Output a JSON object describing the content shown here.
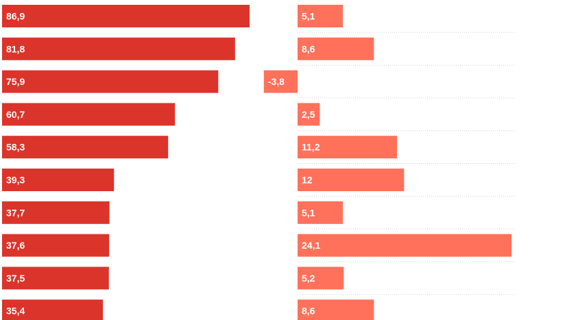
{
  "chart_data": {
    "type": "bar",
    "orientation": "horizontal",
    "layout": "two-panel",
    "grid": false,
    "legend": "none",
    "colors": {
      "left": "#db342b",
      "right": "#ff715b",
      "divider": "#cfcfcf",
      "label": "#ffffff"
    },
    "panels": [
      {
        "id": "left",
        "values": [
          86.9,
          81.8,
          75.9,
          60.7,
          58.3,
          39.3,
          37.7,
          37.6,
          37.5,
          35.4
        ],
        "labels": [
          "86,9",
          "81,8",
          "75,9",
          "60,7",
          "58,3",
          "39,3",
          "37,7",
          "37,6",
          "37,5",
          "35,4"
        ],
        "xlim": [
          0,
          100
        ]
      },
      {
        "id": "right",
        "values": [
          5.1,
          8.6,
          -3.8,
          2.5,
          11.2,
          12,
          5.1,
          24.1,
          5.2,
          8.6
        ],
        "labels": [
          "5,1",
          "8,6",
          "-3,8",
          "2,5",
          "11,2",
          "12",
          "5,1",
          "24,1",
          "5,2",
          "8,6"
        ],
        "xlim": [
          -4,
          24.5
        ]
      }
    ]
  }
}
